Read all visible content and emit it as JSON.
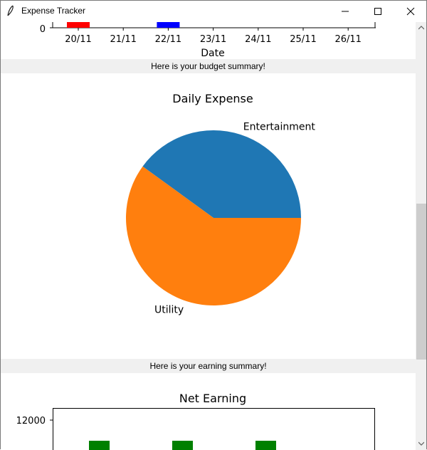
{
  "window": {
    "title": "Expense Tracker"
  },
  "banners": {
    "budget": "Here is your budget summary!",
    "earning": "Here is your earning summary!"
  },
  "chart_data": [
    {
      "type": "bar",
      "xlabel": "Date",
      "categories": [
        "20/11",
        "21/11",
        "22/11",
        "23/11",
        "24/11",
        "25/11",
        "26/11"
      ],
      "y_visible_tick": "0",
      "bars": [
        {
          "category": "20/11",
          "color": "#ff0000"
        },
        {
          "category": "22/11",
          "color": "#0000ff"
        }
      ]
    },
    {
      "type": "pie",
      "title": "Daily Expense",
      "slices": [
        {
          "label": "Entertainment",
          "value": 40,
          "color": "#1f77b4"
        },
        {
          "label": "Utility",
          "value": 60,
          "color": "#ff7f0e"
        }
      ]
    },
    {
      "type": "bar",
      "title": "Net Earning",
      "y_visible_tick": "12000",
      "bar_color": "#008000",
      "bar_count": 3
    }
  ]
}
